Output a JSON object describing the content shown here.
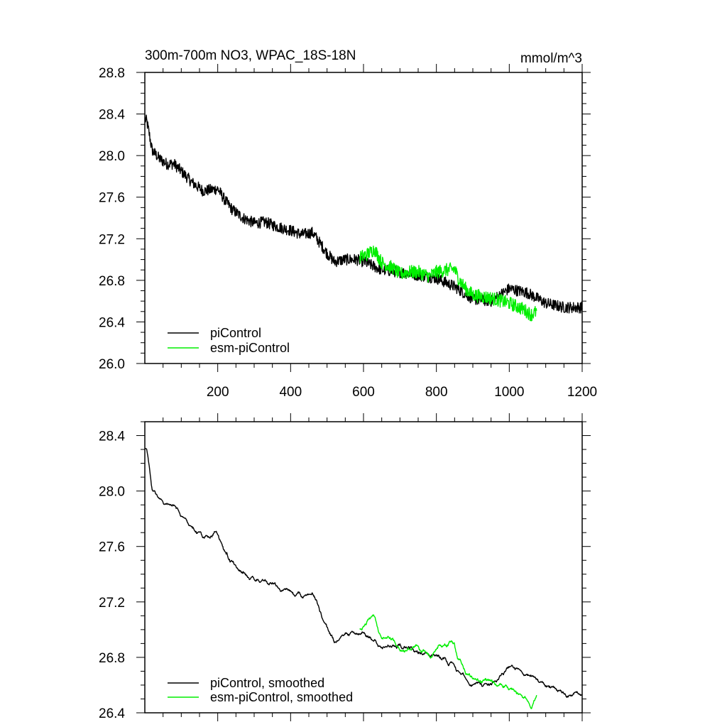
{
  "chart_data": [
    {
      "type": "line",
      "title": "300m-700m NO3, WPAC_18S-18N",
      "units": "mmol/m^3",
      "xlim": [
        0,
        1200
      ],
      "ylim": [
        26.0,
        28.8
      ],
      "xticks": [
        200,
        400,
        600,
        800,
        1000,
        1200
      ],
      "xtick_labels": [
        "200",
        "400",
        "600",
        "800",
        "1000",
        "1200"
      ],
      "yticks": [
        26.0,
        26.4,
        26.8,
        27.2,
        27.6,
        28.0,
        28.4,
        28.8
      ],
      "ytick_labels": [
        "26.0",
        "26.4",
        "26.8",
        "27.2",
        "27.6",
        "28.0",
        "28.4",
        "28.8"
      ],
      "legend_position": "bottom-left",
      "series": [
        {
          "name": "piControl",
          "color": "#000000",
          "noise": 0.055,
          "x": [
            1,
            5,
            10,
            20,
            40,
            60,
            80,
            100,
            130,
            160,
            200,
            220,
            240,
            270,
            300,
            330,
            360,
            400,
            430,
            460,
            480,
            500,
            520,
            550,
            580,
            600,
            650,
            700,
            750,
            800,
            850,
            900,
            950,
            1000,
            1050,
            1100,
            1150,
            1200
          ],
          "values": [
            28.35,
            28.33,
            28.25,
            28.05,
            27.97,
            27.92,
            27.92,
            27.85,
            27.74,
            27.66,
            27.68,
            27.57,
            27.48,
            27.4,
            27.35,
            27.36,
            27.32,
            27.28,
            27.24,
            27.26,
            27.16,
            27.06,
            26.98,
            27.0,
            27.0,
            26.98,
            26.9,
            26.88,
            26.85,
            26.82,
            26.74,
            26.62,
            26.6,
            26.72,
            26.68,
            26.58,
            26.54,
            26.54
          ]
        },
        {
          "name": "esm-piControl",
          "color": "#00ee00",
          "noise": 0.065,
          "x": [
            590,
            610,
            630,
            650,
            680,
            700,
            720,
            750,
            780,
            800,
            830,
            850,
            860,
            880,
            900,
            950,
            1000,
            1040,
            1060,
            1075
          ],
          "values": [
            27.02,
            27.05,
            27.1,
            26.97,
            26.92,
            26.86,
            26.88,
            26.88,
            26.84,
            26.88,
            26.9,
            26.91,
            26.82,
            26.72,
            26.66,
            26.63,
            26.58,
            26.52,
            26.47,
            26.5
          ]
        }
      ]
    },
    {
      "type": "line",
      "title": "",
      "xlim": [
        0,
        1200
      ],
      "ylim": [
        26.4,
        28.5
      ],
      "yticks": [
        26.4,
        26.8,
        27.2,
        27.6,
        28.0,
        28.4
      ],
      "ytick_labels": [
        "26.4",
        "26.8",
        "27.2",
        "27.6",
        "28.0",
        "28.4"
      ],
      "legend_position": "bottom-left",
      "series": [
        {
          "name": "piControl, smoothed",
          "color": "#000000",
          "noise": 0.022,
          "x": [
            1,
            5,
            10,
            20,
            40,
            60,
            80,
            100,
            130,
            160,
            200,
            220,
            240,
            270,
            300,
            330,
            360,
            400,
            430,
            460,
            480,
            500,
            520,
            550,
            580,
            600,
            650,
            700,
            750,
            800,
            850,
            900,
            950,
            1000,
            1050,
            1100,
            1150,
            1200
          ],
          "values": [
            28.32,
            28.3,
            28.2,
            28.02,
            27.95,
            27.9,
            27.9,
            27.83,
            27.73,
            27.66,
            27.7,
            27.56,
            27.48,
            27.4,
            27.36,
            27.36,
            27.32,
            27.28,
            27.24,
            27.27,
            27.14,
            27.02,
            26.9,
            26.98,
            26.98,
            26.97,
            26.88,
            26.87,
            26.84,
            26.82,
            26.73,
            26.6,
            26.6,
            26.74,
            26.68,
            26.6,
            26.54,
            26.53
          ]
        },
        {
          "name": "esm-piControl, smoothed",
          "color": "#00ee00",
          "noise": 0.025,
          "x": [
            590,
            610,
            630,
            650,
            680,
            700,
            720,
            750,
            780,
            800,
            830,
            850,
            860,
            880,
            900,
            950,
            1000,
            1040,
            1060,
            1075
          ],
          "values": [
            27.0,
            27.06,
            27.1,
            26.96,
            26.92,
            26.86,
            26.86,
            26.88,
            26.82,
            26.86,
            26.9,
            26.9,
            26.78,
            26.7,
            26.65,
            26.63,
            26.58,
            26.52,
            26.45,
            26.52
          ]
        }
      ]
    }
  ]
}
